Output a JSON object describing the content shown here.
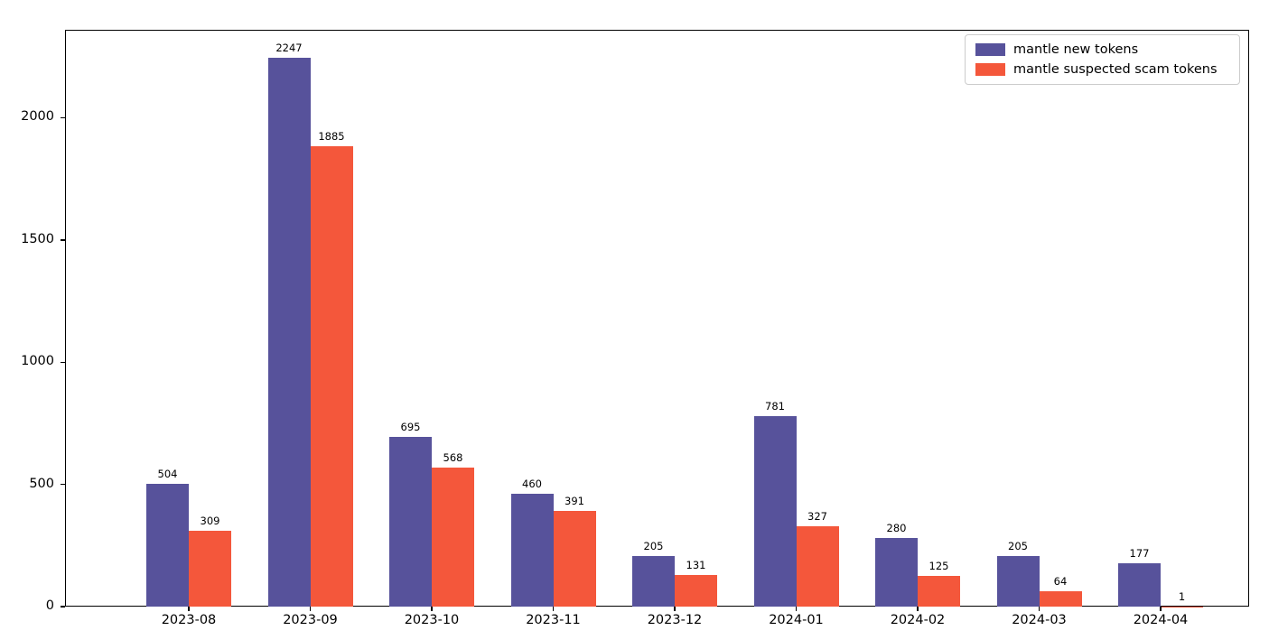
{
  "chart_data": {
    "type": "bar",
    "title": "",
    "xlabel": "",
    "ylabel": "",
    "categories": [
      "2023-08",
      "2023-09",
      "2023-10",
      "2023-11",
      "2023-12",
      "2024-01",
      "2024-02",
      "2024-03",
      "2024-04"
    ],
    "series": [
      {
        "name": "mantle new tokens",
        "color": "#57529B",
        "values": [
          504,
          2247,
          695,
          460,
          205,
          781,
          280,
          205,
          177
        ]
      },
      {
        "name": "mantle suspected scam tokens",
        "color": "#F4573B",
        "values": [
          309,
          1885,
          568,
          391,
          131,
          327,
          125,
          64,
          1
        ]
      }
    ],
    "bar_value_labels": true,
    "yticks": [
      0,
      500,
      1000,
      1500,
      2000
    ],
    "ylim": [
      0,
      2360
    ],
    "grid": false,
    "legend_position": "upper right"
  }
}
